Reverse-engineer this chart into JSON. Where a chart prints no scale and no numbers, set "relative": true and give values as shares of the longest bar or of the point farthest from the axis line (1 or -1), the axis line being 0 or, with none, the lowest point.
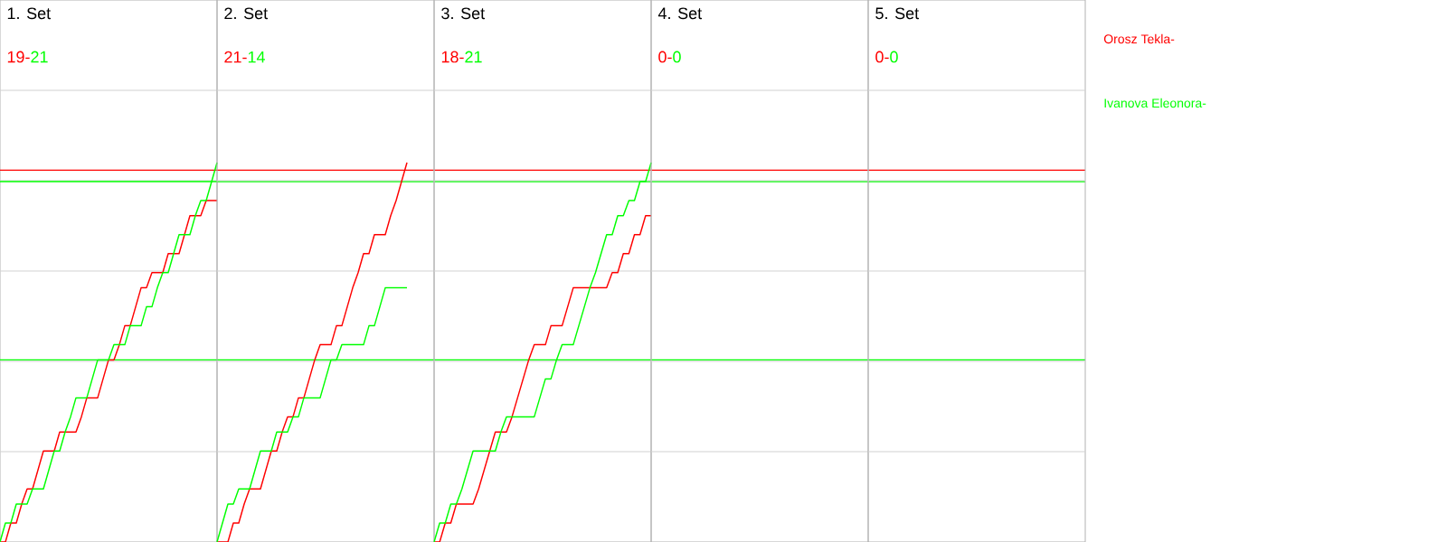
{
  "chart_data": [
    {
      "type": "line",
      "title": "1. Set",
      "annotations": [
        "19-",
        "21"
      ],
      "relative": true,
      "grid": "y",
      "ref_lines": [
        {
          "axis": "y",
          "value": 0.98,
          "color": "#ff0000"
        },
        {
          "axis": "y",
          "value": 0.95,
          "color": "#00ff00"
        },
        {
          "axis": "y",
          "value": 0.48,
          "color": "#00ff00"
        }
      ],
      "categories": [
        null,
        null,
        null,
        null,
        null,
        null,
        null,
        null,
        null,
        null,
        null,
        null,
        null,
        null,
        null,
        null,
        null,
        null,
        null,
        null,
        null,
        null,
        null,
        null,
        null,
        null,
        null,
        null,
        null,
        null,
        null,
        null,
        null,
        null,
        null,
        null,
        null,
        null,
        null,
        null,
        null
      ],
      "series": [
        {
          "name": "Orosz Tekla-",
          "color": "#ff0000",
          "values": [
            0,
            0,
            0.05,
            0.05,
            0.1,
            0.14,
            0.14,
            0.19,
            0.24,
            0.24,
            0.24,
            0.29,
            0.29,
            0.29,
            0.29,
            0.33,
            0.38,
            0.38,
            0.38,
            0.43,
            0.48,
            0.48,
            0.52,
            0.57,
            0.57,
            0.62,
            0.67,
            0.67,
            0.71,
            0.71,
            0.71,
            0.76,
            0.76,
            0.76,
            0.81,
            0.86,
            0.86,
            0.86,
            0.9,
            0.9,
            0.9
          ]
        },
        {
          "name": "Ivanova Eleonora-",
          "color": "#00ff00",
          "values": [
            0,
            0.05,
            0.05,
            0.1,
            0.1,
            0.1,
            0.14,
            0.14,
            0.14,
            0.19,
            0.24,
            0.24,
            0.29,
            0.33,
            0.38,
            0.38,
            0.38,
            0.43,
            0.48,
            0.48,
            0.48,
            0.52,
            0.52,
            0.52,
            0.57,
            0.57,
            0.57,
            0.62,
            0.62,
            0.67,
            0.71,
            0.71,
            0.76,
            0.81,
            0.81,
            0.81,
            0.86,
            0.9,
            0.9,
            0.95,
            1
          ]
        }
      ]
    },
    {
      "type": "line",
      "title": "2. Set",
      "annotations": [
        "21-",
        "14"
      ],
      "relative": true,
      "grid": "y",
      "categories": [
        null,
        null,
        null,
        null,
        null,
        null,
        null,
        null,
        null,
        null,
        null,
        null,
        null,
        null,
        null,
        null,
        null,
        null,
        null,
        null,
        null,
        null,
        null,
        null,
        null,
        null,
        null,
        null,
        null,
        null,
        null,
        null,
        null,
        null,
        null,
        null,
        null,
        null,
        null,
        null,
        null
      ],
      "series": [
        {
          "color": "#ff0000",
          "values": [
            0,
            0,
            0,
            0.05,
            0.05,
            0.1,
            0.14,
            0.14,
            0.14,
            0.19,
            0.24,
            0.24,
            0.29,
            0.33,
            0.33,
            0.38,
            0.38,
            0.43,
            0.48,
            0.52,
            0.52,
            0.52,
            0.57,
            0.57,
            0.62,
            0.67,
            0.71,
            0.76,
            0.76,
            0.81,
            0.81,
            0.81,
            0.86,
            0.9,
            0.95,
            1,
            null,
            null,
            null,
            null,
            null
          ]
        },
        {
          "color": "#00ff00",
          "values": [
            0,
            0.05,
            0.1,
            0.1,
            0.14,
            0.14,
            0.14,
            0.19,
            0.24,
            0.24,
            0.24,
            0.29,
            0.29,
            0.29,
            0.33,
            0.33,
            0.38,
            0.38,
            0.38,
            0.38,
            0.43,
            0.48,
            0.48,
            0.52,
            0.52,
            0.52,
            0.52,
            0.52,
            0.57,
            0.57,
            0.62,
            0.67,
            0.67,
            0.67,
            0.67,
            0.67,
            null,
            null,
            null,
            null,
            null
          ]
        }
      ]
    },
    {
      "type": "line",
      "title": "3. Set",
      "annotations": [
        "18-",
        "21"
      ],
      "relative": true,
      "grid": "y",
      "categories": [
        null,
        null,
        null,
        null,
        null,
        null,
        null,
        null,
        null,
        null,
        null,
        null,
        null,
        null,
        null,
        null,
        null,
        null,
        null,
        null,
        null,
        null,
        null,
        null,
        null,
        null,
        null,
        null,
        null,
        null,
        null,
        null,
        null,
        null,
        null,
        null,
        null,
        null,
        null,
        null
      ],
      "series": [
        {
          "color": "#ff0000",
          "values": [
            0,
            0,
            0.05,
            0.05,
            0.1,
            0.1,
            0.1,
            0.1,
            0.14,
            0.19,
            0.24,
            0.29,
            0.29,
            0.29,
            0.33,
            0.38,
            0.43,
            0.48,
            0.52,
            0.52,
            0.52,
            0.57,
            0.57,
            0.57,
            0.62,
            0.67,
            0.67,
            0.67,
            0.67,
            0.67,
            0.67,
            0.67,
            0.71,
            0.71,
            0.76,
            0.76,
            0.81,
            0.81,
            0.86,
            0.86
          ]
        },
        {
          "color": "#00ff00",
          "values": [
            0,
            0.05,
            0.05,
            0.1,
            0.1,
            0.14,
            0.19,
            0.24,
            0.24,
            0.24,
            0.24,
            0.24,
            0.29,
            0.33,
            0.33,
            0.33,
            0.33,
            0.33,
            0.33,
            0.38,
            0.43,
            0.43,
            0.48,
            0.52,
            0.52,
            0.52,
            0.57,
            0.62,
            0.67,
            0.71,
            0.76,
            0.81,
            0.81,
            0.86,
            0.86,
            0.9,
            0.9,
            0.95,
            0.95,
            1
          ]
        }
      ]
    },
    {
      "type": "other",
      "title": "4. Set",
      "annotations": [
        "0-",
        "0"
      ],
      "series": [
        {
          "color": "#ff0000"
        },
        {
          "color": "#00ff00"
        }
      ]
    },
    {
      "type": "other",
      "title": "5. Set",
      "annotations": [
        "0-",
        "0"
      ],
      "series": [
        {
          "color": "#ff0000"
        },
        {
          "color": "#00ff00"
        }
      ]
    }
  ]
}
